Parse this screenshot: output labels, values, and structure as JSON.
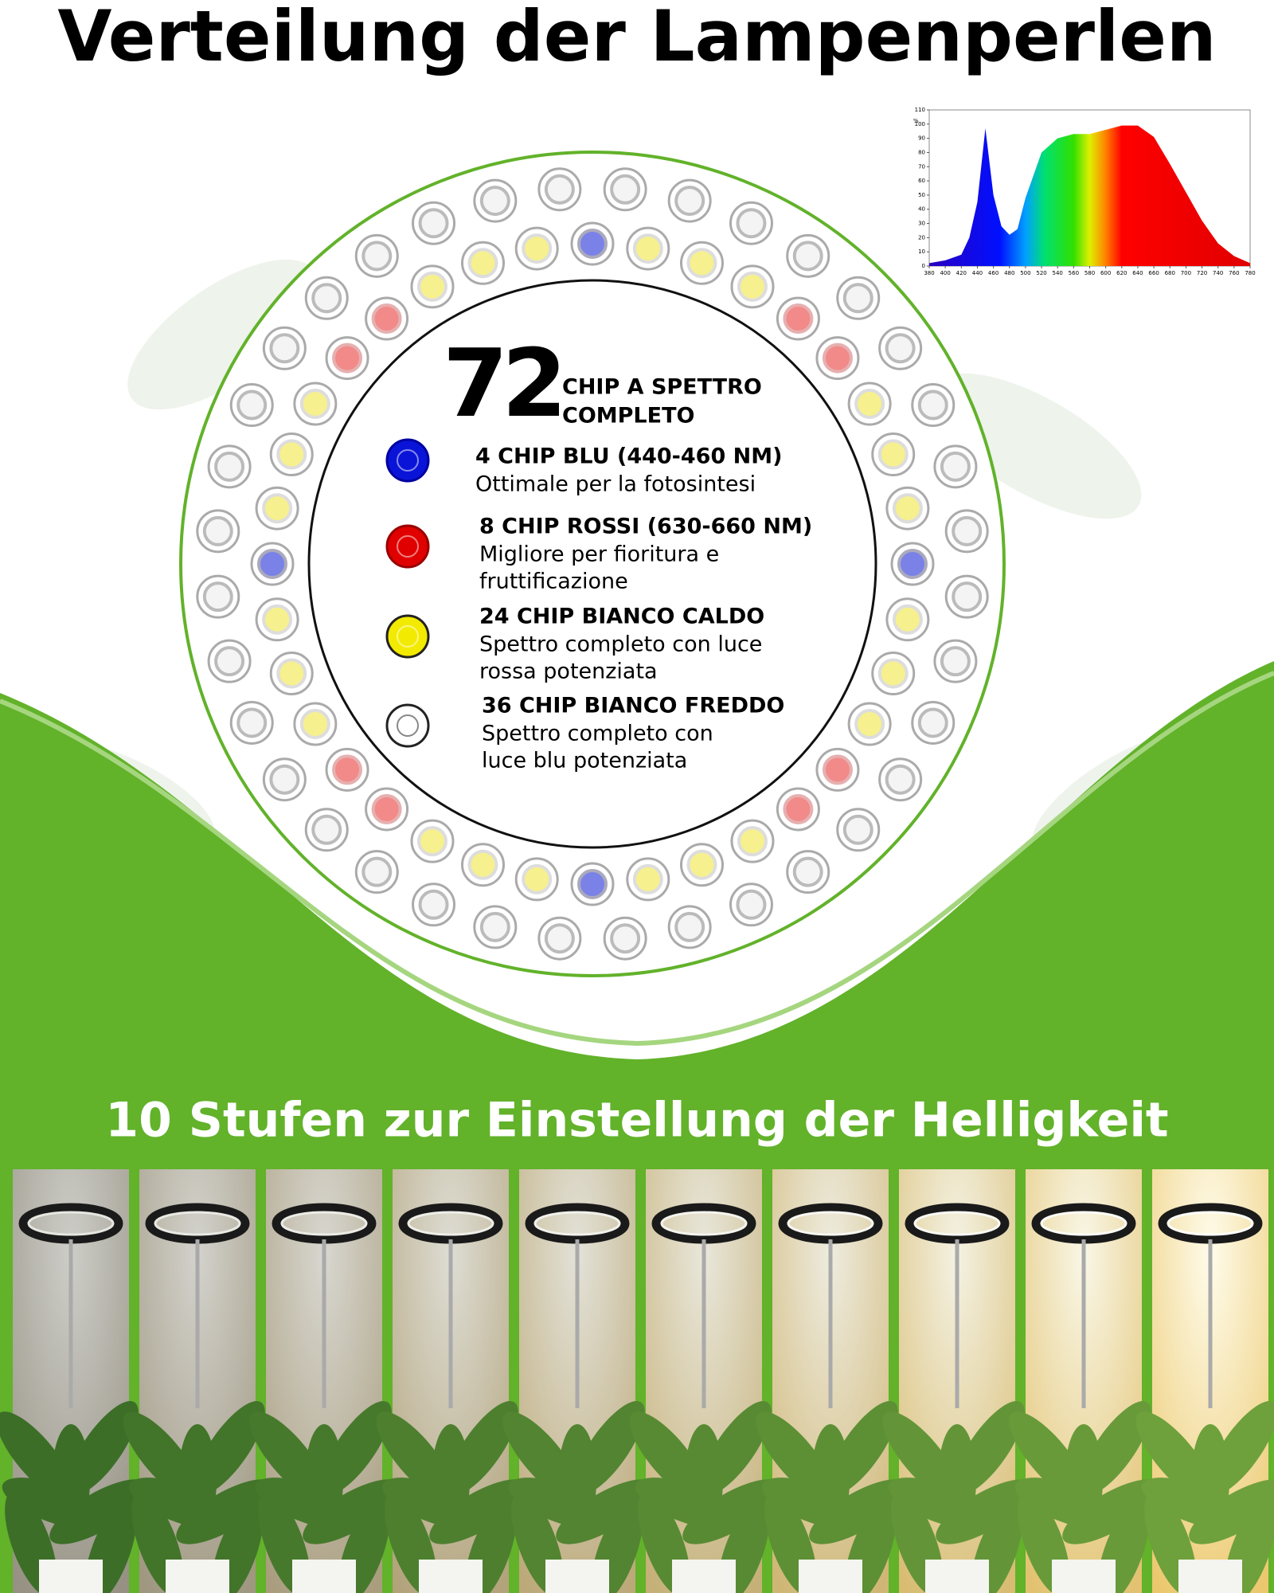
{
  "header": {
    "title": "Verteilung der Lampenperlen"
  },
  "spectrum": {
    "type": "area",
    "ylabel": "%",
    "x": [
      380,
      400,
      420,
      430,
      440,
      450,
      460,
      470,
      480,
      490,
      500,
      520,
      540,
      560,
      580,
      600,
      620,
      640,
      660,
      680,
      700,
      720,
      740,
      760,
      780
    ],
    "values": [
      2,
      4,
      8,
      20,
      45,
      97,
      50,
      28,
      22,
      26,
      48,
      80,
      90,
      93,
      93,
      96,
      99,
      99,
      91,
      72,
      52,
      32,
      16,
      7,
      2
    ],
    "xlim": [
      380,
      780
    ],
    "ylim": [
      0,
      110
    ],
    "xticks": [
      380,
      400,
      420,
      440,
      460,
      480,
      500,
      520,
      540,
      560,
      580,
      600,
      620,
      640,
      660,
      680,
      700,
      720,
      740,
      760,
      780
    ],
    "yticks": [
      0,
      10,
      20,
      30,
      40,
      50,
      60,
      70,
      80,
      90,
      100,
      110
    ]
  },
  "chips": {
    "total": 72,
    "total_label": [
      "CHIP A SPETTRO",
      "COMPLETO"
    ],
    "items": [
      {
        "title": "4 CHIP BLU (440-460 NM)",
        "description": [
          "Ottimale per la fotosintesi"
        ]
      },
      {
        "title": "8 CHIP ROSSI (630-660 NM)",
        "description": [
          "Migliore per fioritura e",
          "fruttificazione"
        ]
      },
      {
        "title": "24 CHIP BIANCO CALDO",
        "description": [
          "Spettro completo con luce",
          "rossa potenziata"
        ]
      },
      {
        "title": "36 CHIP BIANCO FREDDO",
        "description": [
          "Spettro completo con",
          "luce blu potenziata"
        ]
      }
    ]
  },
  "brightness": {
    "title": "10 Stufen zur Einstellung der Helligkeit"
  }
}
